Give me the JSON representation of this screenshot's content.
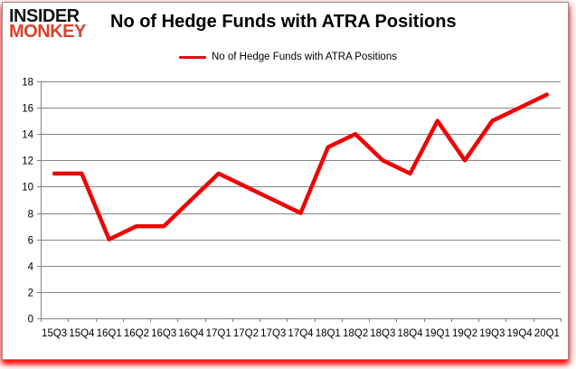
{
  "brand": {
    "line1": "INSIDER",
    "line2": "MONKEY",
    "line1_color": "#141414",
    "line2_color": "#d8432c"
  },
  "title": "No of Hedge Funds with ATRA Positions",
  "legend": {
    "label": "No of Hedge Funds with ATRA Positions",
    "marker_color": "#e30613"
  },
  "chart_data": {
    "type": "line",
    "title": "No of Hedge Funds with ATRA Positions",
    "categories": [
      "15Q3",
      "15Q4",
      "16Q1",
      "16Q2",
      "16Q3",
      "16Q4",
      "17Q1",
      "17Q2",
      "17Q3",
      "17Q4",
      "18Q1",
      "18Q2",
      "18Q3",
      "18Q4",
      "19Q1",
      "19Q2",
      "19Q3",
      "19Q4",
      "20Q1"
    ],
    "series": [
      {
        "name": "No of Hedge Funds with ATRA Positions",
        "values": [
          11,
          11,
          6,
          7,
          7,
          9,
          11,
          10,
          9,
          8,
          13,
          14,
          12,
          11,
          15,
          12,
          15,
          16,
          17
        ]
      }
    ],
    "xlabel": "",
    "ylabel": "",
    "ylim": [
      0,
      18
    ],
    "ytick_step": 2,
    "grid": true,
    "legend_position": "top",
    "line_color": "#ee0404",
    "gridline_color": "#848484",
    "axis_color": "#848484",
    "tick_label_color": "#000000"
  }
}
